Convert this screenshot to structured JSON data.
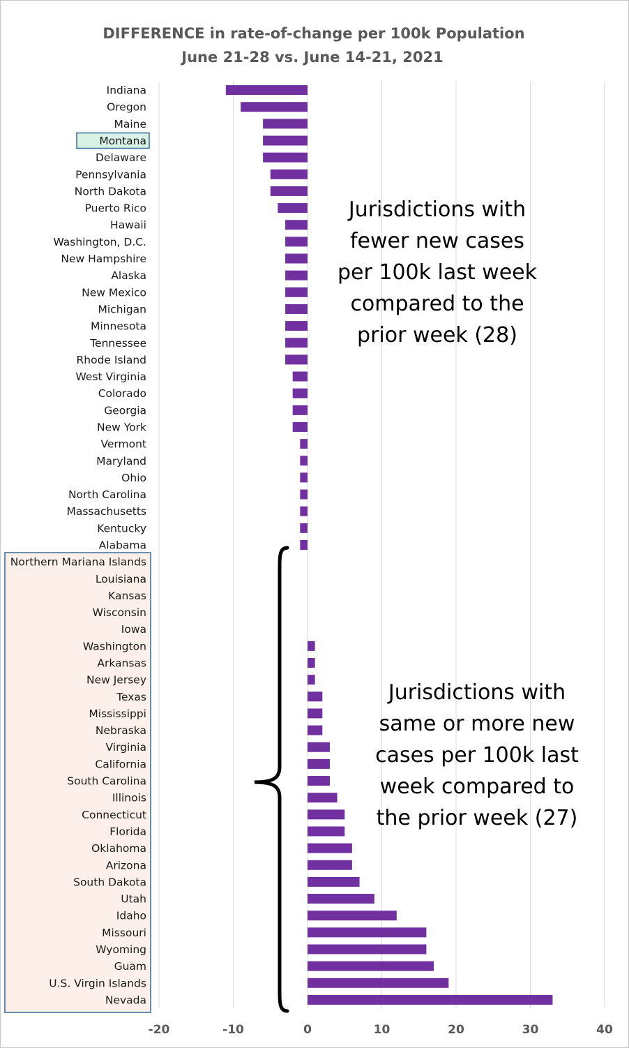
{
  "chart_data": {
    "type": "bar",
    "orientation": "horizontal",
    "title": "DIFFERENCE in rate-of-change per 100k Population",
    "subtitle": "June 21-28 vs. June 14-21, 2021",
    "xlabel": "",
    "ylabel": "",
    "xlim": [
      -20,
      40
    ],
    "xticks": [
      -20,
      -10,
      0,
      10,
      20,
      30,
      40
    ],
    "grid": "vertical",
    "bar_color": "#7030a0",
    "categories": [
      "Indiana",
      "Oregon",
      "Maine",
      "Montana",
      "Delaware",
      "Pennsylvania",
      "North Dakota",
      "Puerto Rico",
      "Hawaii",
      "Washington, D.C.",
      "New Hampshire",
      "Alaska",
      "New Mexico",
      "Michigan",
      "Minnesota",
      "Tennessee",
      "Rhode Island",
      "West Virginia",
      "Colorado",
      "Georgia",
      "New York",
      "Vermont",
      "Maryland",
      "Ohio",
      "North Carolina",
      "Massachusetts",
      "Kentucky",
      "Alabama",
      "Northern Mariana Islands",
      "Louisiana",
      "Kansas",
      "Wisconsin",
      "Iowa",
      "Washington",
      "Arkansas",
      "New Jersey",
      "Texas",
      "Mississippi",
      "Nebraska",
      "Virginia",
      "California",
      "South Carolina",
      "Illinois",
      "Connecticut",
      "Florida",
      "Oklahoma",
      "Arizona",
      "South Dakota",
      "Utah",
      "Idaho",
      "Missouri",
      "Wyoming",
      "Guam",
      "U.S. Virgin Islands",
      "Nevada"
    ],
    "values": [
      -11,
      -9,
      -6,
      -6,
      -6,
      -5,
      -5,
      -4,
      -3,
      -3,
      -3,
      -3,
      -3,
      -3,
      -3,
      -3,
      -3,
      -2,
      -2,
      -2,
      -2,
      -1,
      -1,
      -1,
      -1,
      -1,
      -1,
      -1,
      0,
      0,
      0,
      0,
      0,
      1,
      1,
      1,
      2,
      2,
      2,
      3,
      3,
      3,
      4,
      5,
      5,
      6,
      6,
      7,
      9,
      12,
      16,
      16,
      17,
      19,
      33
    ],
    "highlighted_category": "Montana",
    "highlight_color": "#d9f2e6",
    "group_box_color": "#fdf0ea",
    "box_border_color": "#41719c",
    "annotations": [
      {
        "lines": [
          "Jurisdictions with",
          "fewer new cases",
          "per 100k last week",
          "compared to the",
          "prior week (28)"
        ]
      },
      {
        "lines": [
          "Jurisdictions with",
          "same or more new",
          "cases per 100k last",
          "week compared to",
          "the prior week (27)"
        ]
      }
    ]
  }
}
